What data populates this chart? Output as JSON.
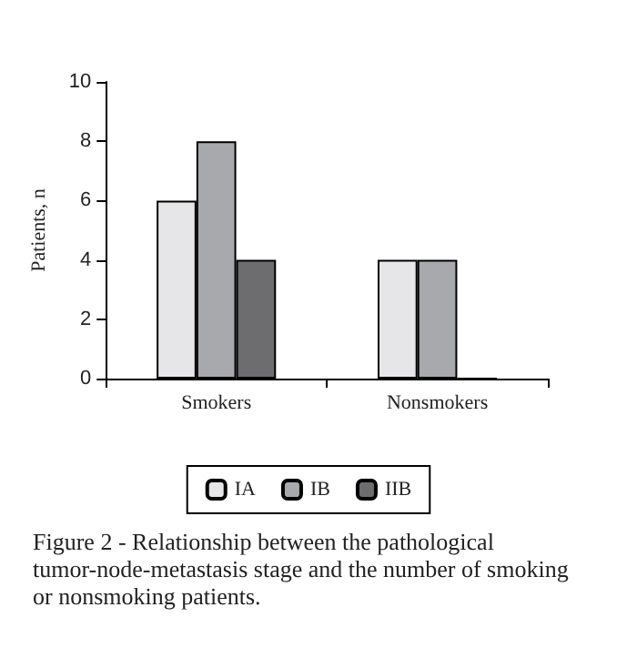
{
  "chart_data": {
    "type": "bar",
    "ylabel": "Patients, n",
    "categories": [
      "Smokers",
      "Nonsmokers"
    ],
    "series": [
      {
        "name": "IA",
        "color": "#e6e6e8",
        "values": [
          6,
          4
        ]
      },
      {
        "name": "IB",
        "color": "#a8a9ad",
        "values": [
          8,
          4
        ]
      },
      {
        "name": "IIB",
        "color": "#6d6d6f",
        "values": [
          4,
          0
        ]
      }
    ],
    "ylim": [
      0,
      10
    ],
    "yticks": [
      0,
      2,
      4,
      6,
      8,
      10
    ],
    "grid": false,
    "legend": "bottom",
    "annotations": [
      "Figure 2 - Relationship between the pathological tumor-node-metastasis stage and the number of smoking or nonsmoking patients."
    ]
  }
}
